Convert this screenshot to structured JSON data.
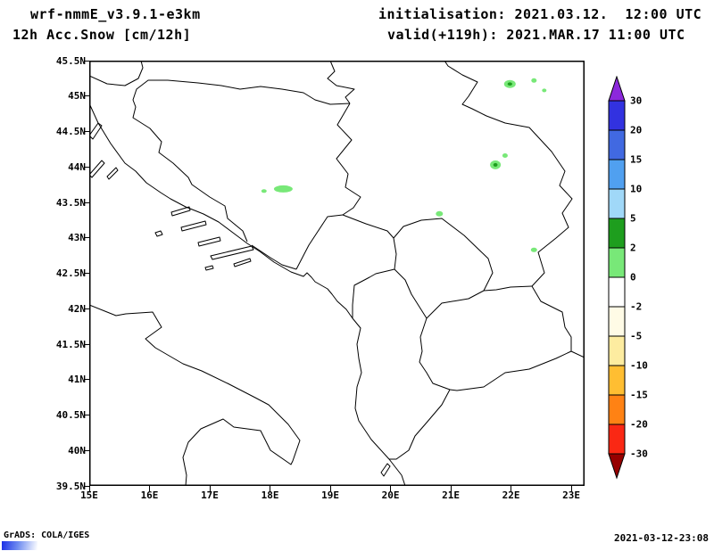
{
  "header": {
    "model": "wrf-nmmE_v3.9.1-e3km",
    "product": "12h Acc.Snow [cm/12h]",
    "initialisation": "initialisation: 2021.03.12.  12:00 UTC",
    "valid": "valid(+119h): 2021.MAR.17 11:00 UTC"
  },
  "map": {
    "lon_range": [
      15,
      23.22
    ],
    "lat_range": [
      39.5,
      45.5
    ],
    "x_ticks": [
      {
        "v": 15,
        "t": "15E"
      },
      {
        "v": 16,
        "t": "16E"
      },
      {
        "v": 17,
        "t": "17E"
      },
      {
        "v": 18,
        "t": "18E"
      },
      {
        "v": 19,
        "t": "19E"
      },
      {
        "v": 20,
        "t": "20E"
      },
      {
        "v": 21,
        "t": "21E"
      },
      {
        "v": 22,
        "t": "22E"
      },
      {
        "v": 23,
        "t": "23E"
      }
    ],
    "y_ticks": [
      {
        "v": 45.5,
        "t": "45.5N"
      },
      {
        "v": 45,
        "t": "45N"
      },
      {
        "v": 44.5,
        "t": "44.5N"
      },
      {
        "v": 44,
        "t": "44N"
      },
      {
        "v": 43.5,
        "t": "43.5N"
      },
      {
        "v": 43,
        "t": "43N"
      },
      {
        "v": 42.5,
        "t": "42.5N"
      },
      {
        "v": 42,
        "t": "42N"
      },
      {
        "v": 41.5,
        "t": "41.5N"
      },
      {
        "v": 41,
        "t": "41N"
      },
      {
        "v": 40.5,
        "t": "40.5N"
      },
      {
        "v": 40,
        "t": "40N"
      },
      {
        "v": 39.5,
        "t": "39.5N"
      }
    ],
    "snow_patches": [
      {
        "lon": 21.98,
        "lat": 45.17,
        "w": 13,
        "h": 9,
        "core": true
      },
      {
        "lon": 22.38,
        "lat": 45.22,
        "w": 6,
        "h": 5,
        "core": false
      },
      {
        "lon": 22.55,
        "lat": 45.08,
        "w": 5,
        "h": 4,
        "core": false
      },
      {
        "lon": 21.74,
        "lat": 44.03,
        "w": 12,
        "h": 10,
        "core": true
      },
      {
        "lon": 21.9,
        "lat": 44.16,
        "w": 6,
        "h": 5,
        "core": false
      },
      {
        "lon": 18.22,
        "lat": 43.69,
        "w": 21,
        "h": 8,
        "core": false
      },
      {
        "lon": 17.9,
        "lat": 43.66,
        "w": 6,
        "h": 4,
        "core": false
      },
      {
        "lon": 20.81,
        "lat": 43.34,
        "w": 8,
        "h": 6,
        "core": false
      },
      {
        "lon": 22.38,
        "lat": 42.83,
        "w": 7,
        "h": 5,
        "core": false
      }
    ]
  },
  "colorbar": {
    "labels": [
      "30",
      "20",
      "15",
      "10",
      "5",
      "2",
      "0",
      "-2",
      "-5",
      "-10",
      "-15",
      "-20",
      "-30"
    ],
    "segment_colors": [
      "#3232e0",
      "#4169e1",
      "#50a0f0",
      "#a0d8f8",
      "#1e9e1e",
      "#78e878",
      "#ffffff",
      "#fffbe6",
      "#fdeca0",
      "#ffbe32",
      "#ff8214",
      "#fa2814"
    ],
    "arrow_top_color": "#8c28dc",
    "arrow_bottom_color": "#960000"
  },
  "footer": {
    "credit": "GrADS: COLA/IGES",
    "timestamp": "2021-03-12-23:08"
  }
}
